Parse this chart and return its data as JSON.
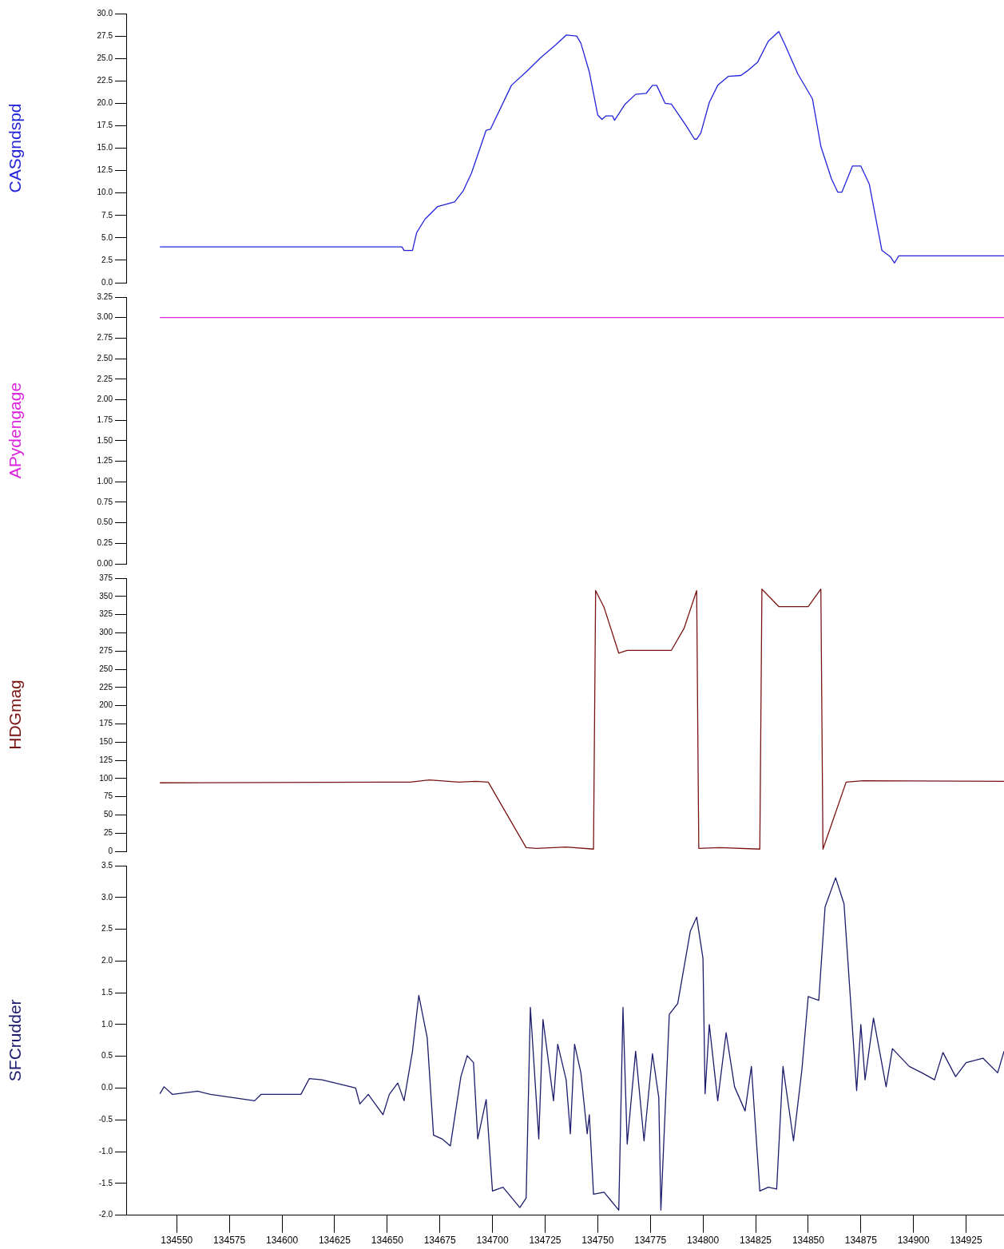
{
  "chart_data": [
    {
      "type": "line",
      "ylabel": "CASgndspd",
      "xlim": [
        134526,
        134943
      ],
      "ylim": [
        0,
        30
      ],
      "yticks": [
        {
          "value": 0,
          "label": "0.0"
        },
        2.5,
        {
          "value": 5,
          "label": "5.0"
        },
        7.5,
        {
          "value": 10,
          "label": "10.0"
        },
        12.5,
        {
          "value": 15,
          "label": "15.0"
        },
        17.5,
        {
          "value": 20,
          "label": "20.0"
        },
        22.5,
        {
          "value": 25,
          "label": "25.0"
        },
        27.5,
        {
          "value": 30,
          "label": "30.0"
        }
      ],
      "tick_labels": "y",
      "series": [
        {
          "color": "#2323dc",
          "x": [
            134542,
            134657,
            134658,
            134662,
            134664,
            134668,
            134674,
            134682,
            134686,
            134690,
            134697,
            134699,
            134709,
            134716,
            134723,
            134730,
            134735,
            134740,
            134742,
            134746,
            134750,
            134752,
            134754,
            134757,
            134758,
            134763,
            134768,
            134773,
            134776,
            134778,
            134782,
            134785,
            134792,
            134796,
            134797,
            134799,
            134803,
            134807,
            134812,
            134818,
            134821,
            134826,
            134831,
            134836,
            134839,
            134845,
            134852,
            134856,
            134861,
            134864,
            134866,
            134871,
            134875,
            134879,
            134885,
            134889,
            134891,
            134893,
            134943
          ],
          "values": [
            4.0,
            4.0,
            3.6,
            3.6,
            5.6,
            7.1,
            8.5,
            9.0,
            10.2,
            12.2,
            17.0,
            17.1,
            22.0,
            23.5,
            25.1,
            26.5,
            27.6,
            27.5,
            26.7,
            23.5,
            18.7,
            18.2,
            18.6,
            18.6,
            18.1,
            19.9,
            21.0,
            21.1,
            22.0,
            22.0,
            20.0,
            19.9,
            17.5,
            16.0,
            16.0,
            16.7,
            20.1,
            22.0,
            23.0,
            23.1,
            23.6,
            24.6,
            26.9,
            28.0,
            26.5,
            23.3,
            20.5,
            15.2,
            11.6,
            10.1,
            10.1,
            13.0,
            13.0,
            11.0,
            3.6,
            2.9,
            2.2,
            3.0,
            3.0
          ]
        }
      ]
    },
    {
      "type": "line",
      "ylabel": "APydengage",
      "xlim": [
        134526,
        134943
      ],
      "ylim": [
        0,
        3.25
      ],
      "yticks": [
        {
          "value": 0,
          "label": "0.00"
        },
        0.25,
        {
          "value": 0.5,
          "label": "0.50"
        },
        0.75,
        {
          "value": 1,
          "label": "1.00"
        },
        1.25,
        {
          "value": 1.5,
          "label": "1.50"
        },
        1.75,
        {
          "value": 2,
          "label": "2.00"
        },
        2.25,
        {
          "value": 2.5,
          "label": "2.50"
        },
        2.75,
        {
          "value": 3,
          "label": "3.00"
        },
        3.25
      ],
      "tick_labels": "y",
      "series": [
        {
          "color": "#dd22dd",
          "x": [
            134542,
            134943
          ],
          "values": [
            3,
            3
          ]
        }
      ]
    },
    {
      "type": "line",
      "ylabel": "HDGmag",
      "xlim": [
        134526,
        134943
      ],
      "ylim": [
        0,
        375
      ],
      "yticks": [
        0,
        25,
        50,
        75,
        100,
        125,
        150,
        175,
        200,
        225,
        250,
        275,
        300,
        325,
        350,
        375
      ],
      "tick_labels": "y",
      "series": [
        {
          "color": "#7a1414",
          "x": [
            134542,
            134648,
            134661,
            134670,
            134684,
            134692,
            134698,
            134706,
            134716,
            134721,
            134735,
            134748,
            134749,
            134753,
            134760,
            134764,
            134785,
            134791,
            134797,
            134798,
            134808,
            134827,
            134828,
            134836,
            134850,
            134856,
            134857,
            134868,
            134876,
            134943
          ],
          "values": [
            94,
            95,
            95,
            98,
            95,
            96,
            95,
            55,
            5,
            4,
            6,
            3,
            358,
            335,
            272,
            276,
            276,
            306,
            358,
            4,
            5,
            3,
            360,
            336,
            336,
            360,
            3,
            95,
            97,
            96
          ]
        }
      ]
    },
    {
      "type": "line",
      "ylabel": "SFCrudder",
      "xlim": [
        134526,
        134943
      ],
      "ylim": [
        -2,
        3.5
      ],
      "yticks": [
        {
          "value": -2,
          "label": "-2.0"
        },
        -1.5,
        {
          "value": -1,
          "label": "-1.0"
        },
        -0.5,
        {
          "value": 0,
          "label": "0.0"
        },
        0.5,
        {
          "value": 1,
          "label": "1.0"
        },
        1.5,
        {
          "value": 2,
          "label": "2.0"
        },
        2.5,
        {
          "value": 3,
          "label": "3.0"
        },
        3.5
      ],
      "xticks": [
        134550,
        134575,
        134600,
        134625,
        134650,
        134675,
        134700,
        134725,
        134750,
        134775,
        134800,
        134825,
        134850,
        134875,
        134900,
        134925
      ],
      "series": [
        {
          "color": "#1c1c6c",
          "x": [
            134542,
            134544,
            134548,
            134560,
            134566,
            134587,
            134590,
            134609,
            134613,
            134619,
            134635,
            134637,
            134641,
            134648,
            134651,
            134655,
            134658,
            134662,
            134665,
            134669,
            134672,
            134676,
            134680,
            134685,
            134688,
            134691,
            134693,
            134697,
            134700,
            134705,
            134713,
            134716,
            134718,
            134722,
            134724,
            134729,
            134731,
            134735,
            134737,
            134739,
            134742,
            134745,
            134746,
            134748,
            134753,
            134759,
            134760,
            134762,
            134764,
            134768,
            134772,
            134776,
            134779,
            134780,
            134784,
            134788,
            134794,
            134797,
            134800,
            134801,
            134803,
            134807,
            134811,
            134815,
            134820,
            134823,
            134827,
            134831,
            134835,
            134838,
            134843,
            134847,
            134850,
            134855,
            134858,
            134863,
            134867,
            134873,
            134875,
            134877,
            134881,
            134887,
            134890,
            134898,
            134904,
            134910,
            134914,
            134920,
            134925,
            134933,
            134940,
            134943
          ],
          "values": [
            -0.09,
            0.02,
            -0.1,
            -0.05,
            -0.1,
            -0.2,
            -0.1,
            -0.1,
            0.15,
            0.13,
            0.0,
            -0.25,
            -0.1,
            -0.42,
            -0.1,
            0.08,
            -0.2,
            0.58,
            1.46,
            0.79,
            -0.74,
            -0.8,
            -0.91,
            0.18,
            0.51,
            0.4,
            -0.8,
            -0.18,
            -1.62,
            -1.56,
            -1.88,
            -1.73,
            1.27,
            -0.8,
            1.08,
            -0.2,
            0.69,
            0.13,
            -0.72,
            0.69,
            0.24,
            -0.72,
            -0.42,
            -1.67,
            -1.64,
            -1.88,
            -1.92,
            1.27,
            -0.88,
            0.58,
            -0.83,
            0.54,
            -0.15,
            -1.92,
            1.16,
            1.33,
            2.47,
            2.69,
            2.04,
            -0.09,
            1.0,
            -0.2,
            0.87,
            0.02,
            -0.36,
            0.34,
            -1.62,
            -1.56,
            -1.59,
            0.34,
            -0.83,
            0.29,
            1.44,
            1.38,
            2.85,
            3.31,
            2.9,
            -0.04,
            1.0,
            0.13,
            1.1,
            0.02,
            0.62,
            0.34,
            0.24,
            0.13,
            0.56,
            0.18,
            0.4,
            0.47,
            0.24,
            0.58
          ]
        }
      ]
    }
  ]
}
